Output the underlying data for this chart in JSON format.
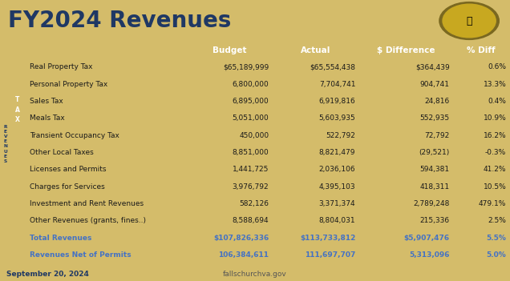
{
  "title": "FY2024 Revenues",
  "title_color": "#1f3864",
  "title_bg_color": "#d4bc6a",
  "table_bg_color": "#ffffff",
  "header_bg_color": "#6b9bd2",
  "header_text_color": "#ffffff",
  "col_headers": [
    "",
    "Budget",
    "Actual",
    "$ Difference",
    "% Diff"
  ],
  "rows": [
    {
      "label": "Real Property Tax",
      "budget": "$65,189,999",
      "actual": "$65,554,438",
      "diff": "$364,439",
      "pct": "0.6%",
      "alt": false
    },
    {
      "label": "Personal Property Tax",
      "budget": "6,800,000",
      "actual": "7,704,741",
      "diff": "904,741",
      "pct": "13.3%",
      "alt": true
    },
    {
      "label": "Sales Tax",
      "budget": "6,895,000",
      "actual": "6,919,816",
      "diff": "24,816",
      "pct": "0.4%",
      "alt": false
    },
    {
      "label": "Meals Tax",
      "budget": "5,051,000",
      "actual": "5,603,935",
      "diff": "552,935",
      "pct": "10.9%",
      "alt": true
    },
    {
      "label": "Transient Occupancy Tax",
      "budget": "450,000",
      "actual": "522,792",
      "diff": "72,792",
      "pct": "16.2%",
      "alt": false
    },
    {
      "label": "Other Local Taxes",
      "budget": "8,851,000",
      "actual": "8,821,479",
      "diff": "(29,521)",
      "pct": "-0.3%",
      "alt": true
    },
    {
      "label": "Licenses and Permits",
      "budget": "1,441,725",
      "actual": "2,036,106",
      "diff": "594,381",
      "pct": "41.2%",
      "alt": false
    },
    {
      "label": "Charges for Services",
      "budget": "3,976,792",
      "actual": "4,395,103",
      "diff": "418,311",
      "pct": "10.5%",
      "alt": true
    },
    {
      "label": "Investment and Rent Revenues",
      "budget": "582,126",
      "actual": "3,371,374",
      "diff": "2,789,248",
      "pct": "479.1%",
      "alt": false
    },
    {
      "label": "Other Revenues (grants, fines..)",
      "budget": "8,588,694",
      "actual": "8,804,031",
      "diff": "215,336",
      "pct": "2.5%",
      "alt": true
    }
  ],
  "total_row": {
    "label": "Total Revenues",
    "budget": "$107,826,336",
    "actual": "$113,733,812",
    "diff": "$5,907,476",
    "pct": "5.5%"
  },
  "net_row": {
    "label": "Revenues Net of Permits",
    "budget": "106,384,611",
    "actual": "111,697,707",
    "diff": "5,313,096",
    "pct": "5.0%"
  },
  "footer_left": "September 20, 2024",
  "footer_center": "fallschurchva.gov",
  "row_bg_white": "#ffffff",
  "row_bg_alt": "#dce6f1",
  "total_bg": "#c5d9f1",
  "net_bg": "#dce6f1",
  "sidebar_outer_bg": "#dce6f1",
  "sidebar_outer_text": "#1f3864",
  "sidebar_inner_bg": "#1f3864",
  "sidebar_inner_text": "#ffffff",
  "data_text_color": "#1a1a1a",
  "total_text_color": "#4472c4",
  "net_text_color": "#4472c4",
  "footer_left_color": "#1f3864",
  "footer_center_color": "#555555"
}
